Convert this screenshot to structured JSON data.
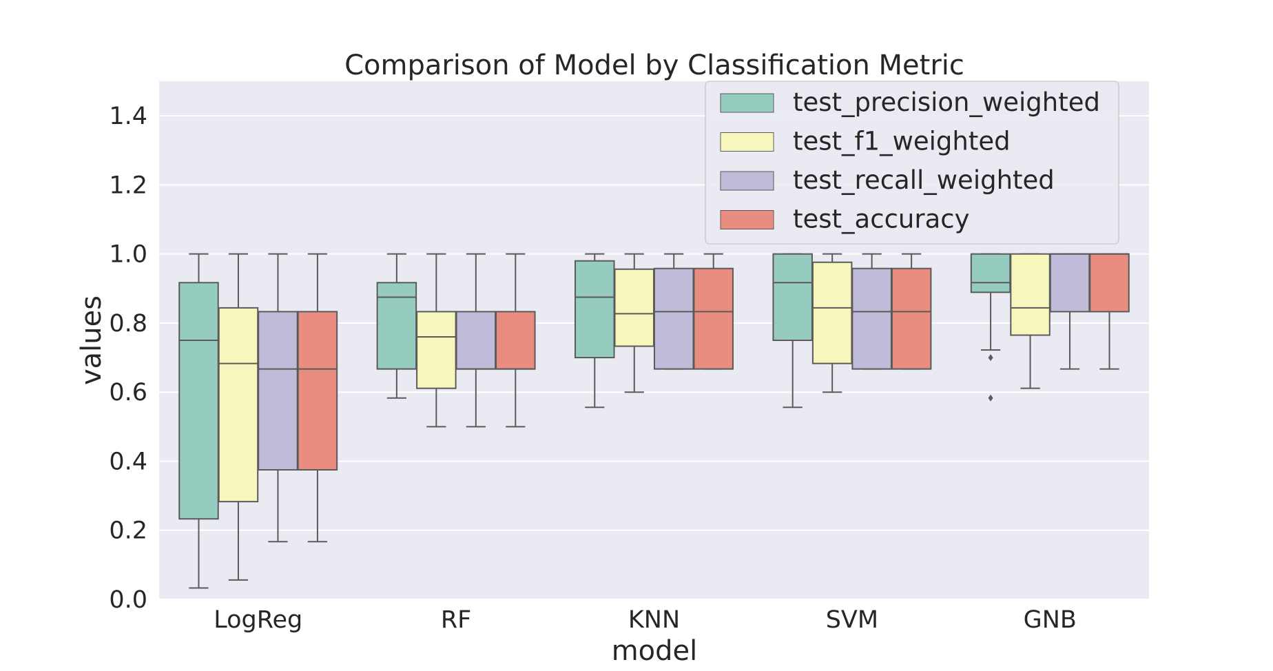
{
  "chart_data": {
    "type": "box",
    "title": "Comparison of Model by Classification Metric",
    "xlabel": "model",
    "ylabel": "values",
    "ylim": [
      0.0,
      1.5
    ],
    "yticks": [
      "0.0",
      "0.2",
      "0.4",
      "0.6",
      "0.8",
      "1.0",
      "1.2",
      "1.4"
    ],
    "categories": [
      "LogReg",
      "RF",
      "KNN",
      "SVM",
      "GNB"
    ],
    "grid": true,
    "legend_position": "top-right",
    "series": [
      {
        "name": "test_precision_weighted",
        "color": "#96cbbf",
        "boxes": [
          {
            "whislo": 0.033,
            "q1": 0.233,
            "med": 0.75,
            "q3": 0.917,
            "whishi": 1.0,
            "fliers": []
          },
          {
            "whislo": 0.583,
            "q1": 0.667,
            "med": 0.875,
            "q3": 0.917,
            "whishi": 1.0,
            "fliers": []
          },
          {
            "whislo": 0.556,
            "q1": 0.7,
            "med": 0.875,
            "q3": 0.98,
            "whishi": 1.0,
            "fliers": []
          },
          {
            "whislo": 0.556,
            "q1": 0.75,
            "med": 0.917,
            "q3": 1.0,
            "whishi": 1.0,
            "fliers": []
          },
          {
            "whislo": 0.722,
            "q1": 0.889,
            "med": 0.917,
            "q3": 1.0,
            "whishi": 1.0,
            "fliers": [
              0.7,
              0.583
            ]
          }
        ]
      },
      {
        "name": "test_f1_weighted",
        "color": "#f6f6bd",
        "boxes": [
          {
            "whislo": 0.056,
            "q1": 0.283,
            "med": 0.683,
            "q3": 0.844,
            "whishi": 1.0,
            "fliers": []
          },
          {
            "whislo": 0.5,
            "q1": 0.611,
            "med": 0.76,
            "q3": 0.833,
            "whishi": 1.0,
            "fliers": []
          },
          {
            "whislo": 0.6,
            "q1": 0.733,
            "med": 0.827,
            "q3": 0.956,
            "whishi": 1.0,
            "fliers": []
          },
          {
            "whislo": 0.6,
            "q1": 0.683,
            "med": 0.844,
            "q3": 0.976,
            "whishi": 1.0,
            "fliers": []
          },
          {
            "whislo": 0.611,
            "q1": 0.765,
            "med": 0.844,
            "q3": 1.0,
            "whishi": 1.0,
            "fliers": []
          }
        ]
      },
      {
        "name": "test_recall_weighted",
        "color": "#bfbbd8",
        "boxes": [
          {
            "whislo": 0.167,
            "q1": 0.375,
            "med": 0.667,
            "q3": 0.833,
            "whishi": 1.0,
            "fliers": []
          },
          {
            "whislo": 0.5,
            "q1": 0.667,
            "med": 0.667,
            "q3": 0.833,
            "whishi": 1.0,
            "fliers": []
          },
          {
            "whislo": 0.667,
            "q1": 0.667,
            "med": 0.833,
            "q3": 0.958,
            "whishi": 1.0,
            "fliers": []
          },
          {
            "whislo": 0.667,
            "q1": 0.667,
            "med": 0.833,
            "q3": 0.958,
            "whishi": 1.0,
            "fliers": []
          },
          {
            "whislo": 0.667,
            "q1": 0.833,
            "med": 1.0,
            "q3": 1.0,
            "whishi": 1.0,
            "fliers": []
          }
        ]
      },
      {
        "name": "test_accuracy",
        "color": "#e98d80",
        "boxes": [
          {
            "whislo": 0.167,
            "q1": 0.375,
            "med": 0.667,
            "q3": 0.833,
            "whishi": 1.0,
            "fliers": []
          },
          {
            "whislo": 0.5,
            "q1": 0.667,
            "med": 0.667,
            "q3": 0.833,
            "whishi": 1.0,
            "fliers": []
          },
          {
            "whislo": 0.667,
            "q1": 0.667,
            "med": 0.833,
            "q3": 0.958,
            "whishi": 1.0,
            "fliers": []
          },
          {
            "whislo": 0.667,
            "q1": 0.667,
            "med": 0.833,
            "q3": 0.958,
            "whishi": 1.0,
            "fliers": []
          },
          {
            "whislo": 0.667,
            "q1": 0.833,
            "med": 1.0,
            "q3": 1.0,
            "whishi": 1.0,
            "fliers": []
          }
        ]
      }
    ]
  }
}
